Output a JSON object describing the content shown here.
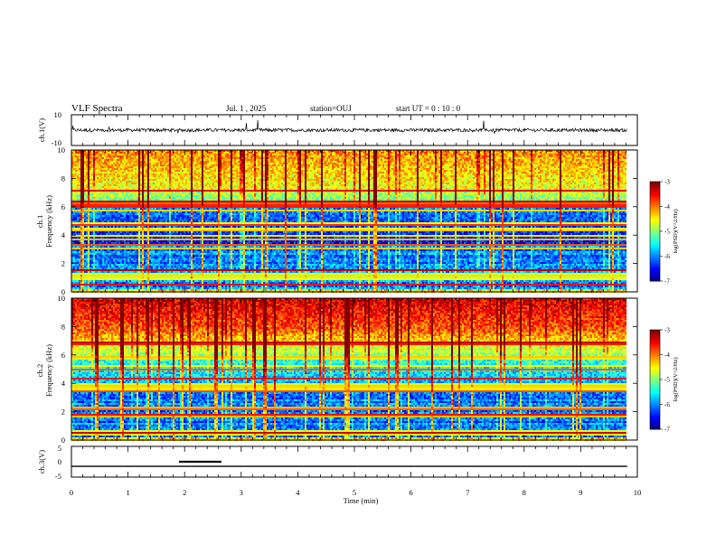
{
  "header": {
    "title": "VLF Spectra",
    "date": "Jul. 1 , 2025",
    "station": "station=OUJ",
    "start_ut": "start UT = 0 : 10 : 0"
  },
  "chart_data": [
    {
      "type": "line",
      "name": "ch1-waveform",
      "ylabel": "ch.1(V)",
      "ylim": [
        -10,
        10
      ],
      "yticks": [
        "10",
        "-10"
      ],
      "xlim": [
        0,
        10
      ],
      "baseline": 0,
      "signal_end_x": 9.82
    },
    {
      "type": "heatmap",
      "name": "ch1-spectrogram",
      "ylabel_channel": "ch.1",
      "ylabel": "Frequency (kHz)",
      "ylim": [
        0,
        10
      ],
      "yticks": [
        "0",
        "2",
        "4",
        "6",
        "8",
        "10"
      ],
      "xlim": [
        0,
        10
      ],
      "data_end_x": 9.82,
      "colorbar": {
        "label": "log(PSD)(V^2/Hz)",
        "range": [
          -7,
          -3
        ],
        "ticks": [
          "-3",
          "-4",
          "-5",
          "-6",
          "-7"
        ]
      }
    },
    {
      "type": "heatmap",
      "name": "ch2-spectrogram",
      "ylabel_channel": "ch.2",
      "ylabel": "Frequency (kHz)",
      "ylim": [
        0,
        10
      ],
      "yticks": [
        "0",
        "2",
        "4",
        "6",
        "8",
        "10"
      ],
      "xlim": [
        0,
        10
      ],
      "data_end_x": 9.82,
      "colorbar": {
        "label": "log(PSD)(V^2/Hz)",
        "range": [
          -7,
          -3
        ],
        "ticks": [
          "-3",
          "-4",
          "-5",
          "-6",
          "-7"
        ]
      }
    },
    {
      "type": "line",
      "name": "ch3-level",
      "ylabel": "ch.3(V)",
      "ylim": [
        -5,
        5
      ],
      "yticks": [
        "5",
        "0",
        "-5"
      ],
      "xlim": [
        0,
        10
      ],
      "baseline": -1.5,
      "pulse": {
        "x_start": 1.9,
        "x_end": 2.65,
        "value": 0
      },
      "signal_end_x": 9.82
    }
  ],
  "xaxis": {
    "label": "Time (min)",
    "ticks": [
      "0",
      "1",
      "2",
      "3",
      "4",
      "5",
      "6",
      "7",
      "8",
      "9",
      "10"
    ]
  },
  "colors": {
    "jet_low": "#00007f",
    "jet_mid": "#00ff7f",
    "jet_high": "#7f0000"
  }
}
